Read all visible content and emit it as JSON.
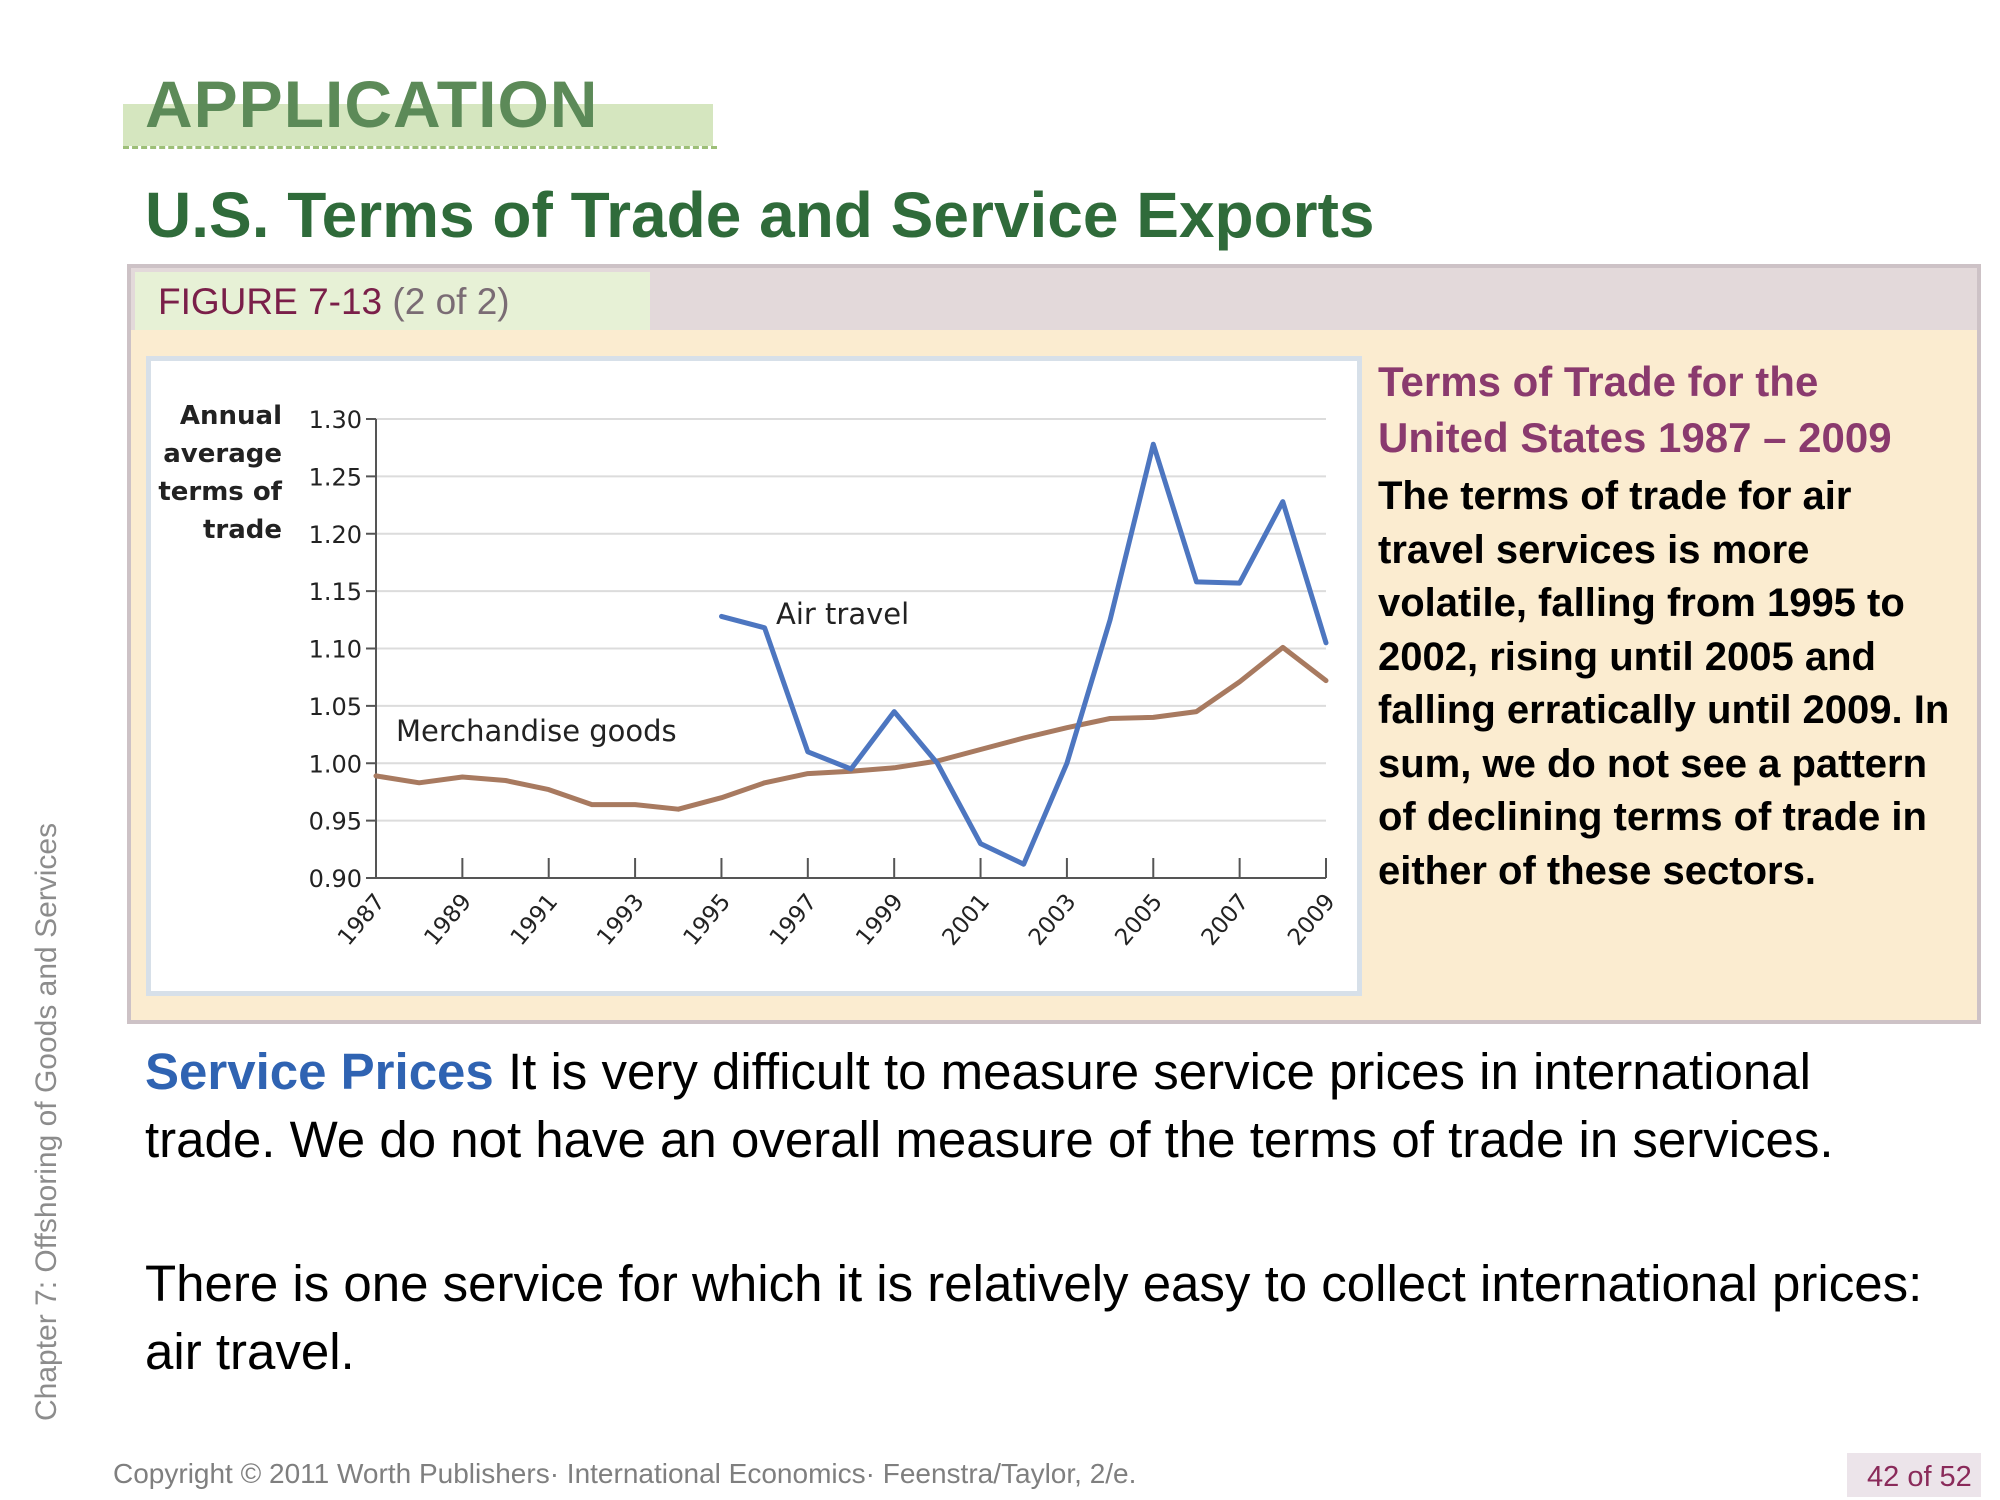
{
  "slide": {
    "application_label": "APPLICATION",
    "title": "U.S. Terms of Trade and Service Exports",
    "chapter_label": "Chapter 7: Offshoring of Goods and Services",
    "copyright": "Copyright © 2011 Worth Publishers· International Economics· Feenstra/Taylor, 2/e.",
    "page": "42 of 52"
  },
  "figure": {
    "word": "FIGURE",
    "number": "7-13",
    "part": "(2 of 2)"
  },
  "side_panel": {
    "title": "Terms of Trade for the United States 1987 – 2009",
    "body": "The terms of trade for air travel services is more volatile, falling from 1995 to 2002, rising until 2005 and falling erratically until 2009. In sum,  we do not see a pattern of declining terms of trade in either of these sectors."
  },
  "body": {
    "lead": "Service Prices",
    "para1": " It is very difficult to measure service prices in international trade. We do not have an overall measure of the terms of trade in services.",
    "para2": "There is one service for which it is relatively easy to collect international prices: air travel."
  },
  "chart_data": {
    "type": "line",
    "ylabel": [
      "Annual",
      "average",
      "terms of",
      "trade"
    ],
    "xlabel": "",
    "xlim": [
      1987,
      2009
    ],
    "ylim": [
      0.9,
      1.3
    ],
    "yticks": [
      "0.90",
      "0.95",
      "1.00",
      "1.05",
      "1.10",
      "1.15",
      "1.20",
      "1.25",
      "1.30"
    ],
    "xticks": [
      "1987",
      "1989",
      "1991",
      "1993",
      "1995",
      "1997",
      "1999",
      "2001",
      "2003",
      "2005",
      "2007",
      "2009"
    ],
    "grid": true,
    "series": [
      {
        "name": "Merchandise goods",
        "color": "#a87a60",
        "x": [
          1987,
          1988,
          1989,
          1990,
          1991,
          1992,
          1993,
          1994,
          1995,
          1996,
          1997,
          1998,
          1999,
          2000,
          2001,
          2002,
          2003,
          2004,
          2005,
          2006,
          2007,
          2008,
          2009
        ],
        "values": [
          0.989,
          0.983,
          0.988,
          0.985,
          0.977,
          0.964,
          0.964,
          0.96,
          0.97,
          0.983,
          0.991,
          0.993,
          0.996,
          1.002,
          1.012,
          1.022,
          1.031,
          1.039,
          1.04,
          1.045,
          1.071,
          1.101,
          1.072
        ]
      },
      {
        "name": "Air travel",
        "color": "#4d76c0",
        "x": [
          1995,
          1996,
          1997,
          1998,
          1999,
          2000,
          2001,
          2002,
          2003,
          2004,
          2005,
          2006,
          2007,
          2008,
          2009
        ],
        "values": [
          1.128,
          1.118,
          1.01,
          0.995,
          1.045,
          1.0,
          0.93,
          0.912,
          1.0,
          1.125,
          1.278,
          1.158,
          1.157,
          1.228,
          1.105
        ]
      }
    ]
  }
}
